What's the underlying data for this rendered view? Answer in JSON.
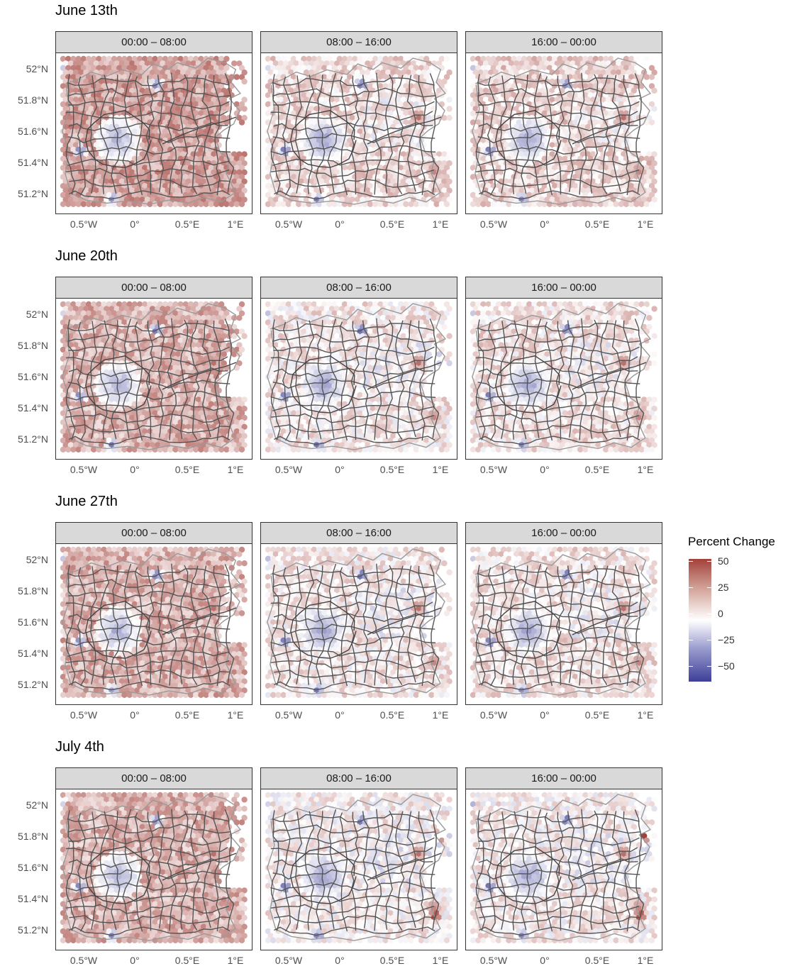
{
  "figure": {
    "facet_rows": [
      {
        "title": "June 13th",
        "panels": [
          "00:00 – 08:00",
          "08:00 – 16:00",
          "16:00 – 00:00"
        ]
      },
      {
        "title": "June 20th",
        "panels": [
          "00:00 – 08:00",
          "08:00 – 16:00",
          "16:00 – 00:00"
        ]
      },
      {
        "title": "June 27th",
        "panels": [
          "00:00 – 08:00",
          "08:00 – 16:00",
          "16:00 – 00:00"
        ]
      },
      {
        "title": "July 4th",
        "panels": [
          "00:00 – 08:00",
          "08:00 – 16:00",
          "16:00 – 00:00"
        ]
      }
    ],
    "x_ticks": [
      "0.5°W",
      "0°",
      "0.5°E",
      "1°E"
    ],
    "y_ticks": [
      "52°N",
      "51.8°N",
      "51.6°N",
      "51.4°N",
      "51.2°N"
    ],
    "legend": {
      "title": "Percent Change",
      "labels": [
        "50",
        "25",
        "0",
        "−25",
        "−50"
      ],
      "values": [
        50,
        25,
        0,
        -25,
        -50
      ],
      "high_color": "#a2413a",
      "mid_color": "#ffffff",
      "low_color": "#3d3f99"
    }
  }
}
